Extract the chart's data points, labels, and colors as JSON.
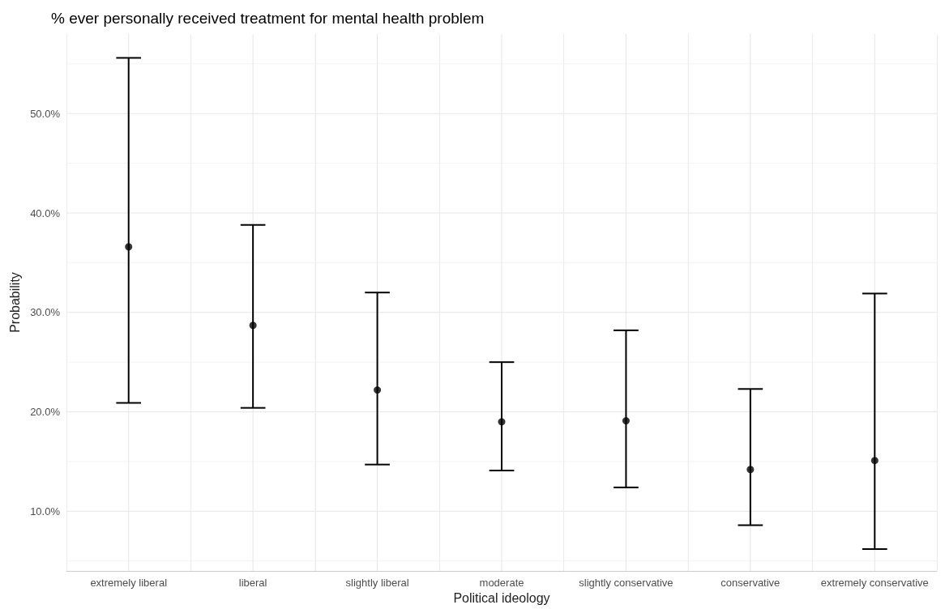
{
  "chart_data": {
    "type": "scatter",
    "title": "% ever personally received treatment for mental health problem",
    "xlabel": "Political ideology",
    "ylabel": "Probability",
    "categories": [
      "extremely liberal",
      "liberal",
      "slightly liberal",
      "moderate",
      "slightly conservative",
      "conservative",
      "extremely conservative"
    ],
    "values": [
      36.6,
      28.7,
      22.2,
      19.0,
      19.1,
      14.2,
      15.1
    ],
    "errors": [
      [
        20.9,
        55.6
      ],
      [
        20.4,
        38.8
      ],
      [
        14.7,
        32.0
      ],
      [
        14.1,
        25.0
      ],
      [
        12.4,
        28.2
      ],
      [
        8.6,
        22.3
      ],
      [
        6.2,
        31.9
      ]
    ],
    "color": "#000000",
    "marker": "circle",
    "grid": true,
    "ylim": [
      4,
      58
    ],
    "yticks": [
      {
        "value": 10,
        "label": "10.0%"
      },
      {
        "value": 20,
        "label": "20.0%"
      },
      {
        "value": 30,
        "label": "30.0%"
      },
      {
        "value": 40,
        "label": "40.0%"
      },
      {
        "value": 50,
        "label": "50.0%"
      }
    ]
  }
}
